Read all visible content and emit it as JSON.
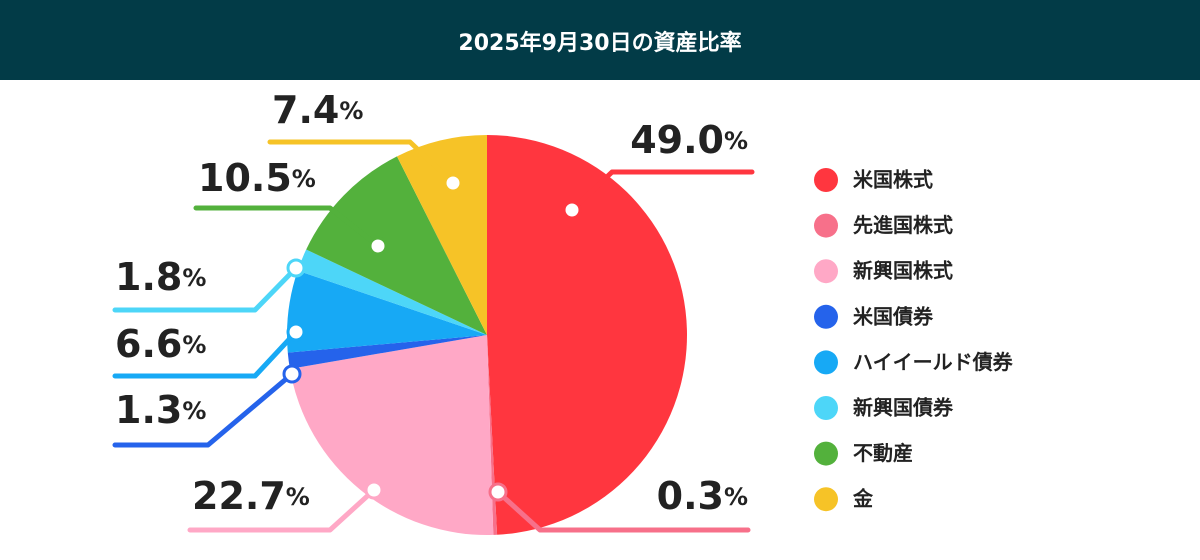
{
  "chart_data": {
    "type": "pie",
    "title": "2025年9月30日の資産比率",
    "categories": [
      "米国株式",
      "先進国株式",
      "新興国株式",
      "米国債券",
      "ハイイールド債券",
      "新興国債券",
      "不動産",
      "金"
    ],
    "values": [
      49.0,
      0.3,
      22.7,
      1.3,
      6.6,
      1.8,
      10.5,
      7.4
    ],
    "value_labels": [
      "49.0%",
      "0.3%",
      "22.7%",
      "1.3%",
      "6.6%",
      "1.8%",
      "10.5%",
      "7.4%"
    ],
    "colors": [
      "#ff363f",
      "#f7708a",
      "#ffa8c6",
      "#2563eb",
      "#17a9f5",
      "#4dd6f8",
      "#53b13c",
      "#f6c327"
    ],
    "legend": "right"
  }
}
